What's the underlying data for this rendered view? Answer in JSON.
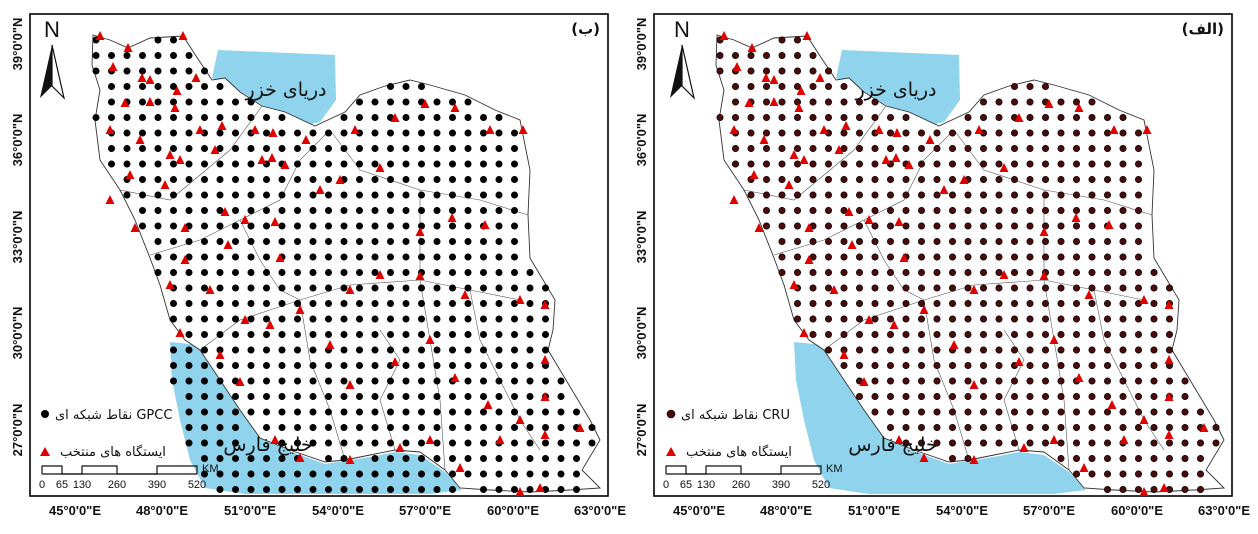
{
  "panels": [
    {
      "id": "left",
      "label": "(ب)",
      "north": "N",
      "caspian_label": "دریای خزر",
      "gulf_label": "خلیج فارس",
      "legend": {
        "grid_label": "نقاط شبکه ای GPCC",
        "station_label": "ایستگاه های منتخب"
      },
      "grid_color": "#000000",
      "station_color": "#e00000"
    },
    {
      "id": "right",
      "label": "(الف)",
      "north": "N",
      "caspian_label": "دریای خزر",
      "gulf_label": "خلیج فارس",
      "legend": {
        "grid_label": "نقاط شبکه ای CRU",
        "station_label": "ایستگاه های منتخب"
      },
      "grid_color": "#4a0b0b",
      "station_color": "#e00000"
    }
  ],
  "lat_labels": [
    "39°0'0\"N",
    "36°0'0\"N",
    "33°0'0\"N",
    "30°0'0\"N",
    "27°0'0\"N"
  ],
  "lon_labels": [
    "45°0'0\"E",
    "48°0'0\"E",
    "51°0'0\"E",
    "54°0'0\"E",
    "57°0'0\"E",
    "60°0'0\"E",
    "63°0'0\"E"
  ],
  "scale_bar": {
    "unit": "KM",
    "ticks": [
      "0",
      "65",
      "130",
      "260",
      "390",
      "520"
    ]
  },
  "colors": {
    "water": "#8fd3ec",
    "station": "#e00000"
  }
}
